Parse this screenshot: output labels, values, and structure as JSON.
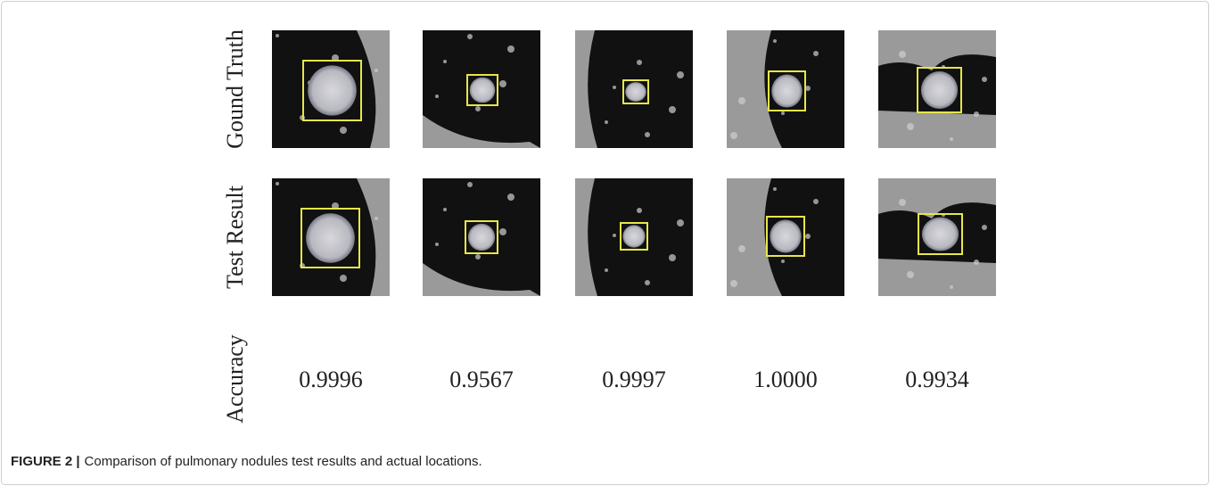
{
  "figure": {
    "row_labels": [
      "Gound Truth",
      "Test Result",
      "Accuracy"
    ],
    "accuracy": [
      "0.9996",
      "0.9567",
      "0.9997",
      "1.0000",
      "0.9934"
    ],
    "caption": {
      "label": "FIGURE 2 |",
      "text": "Comparison of pulmonary nodules test results and actual locations."
    }
  }
}
